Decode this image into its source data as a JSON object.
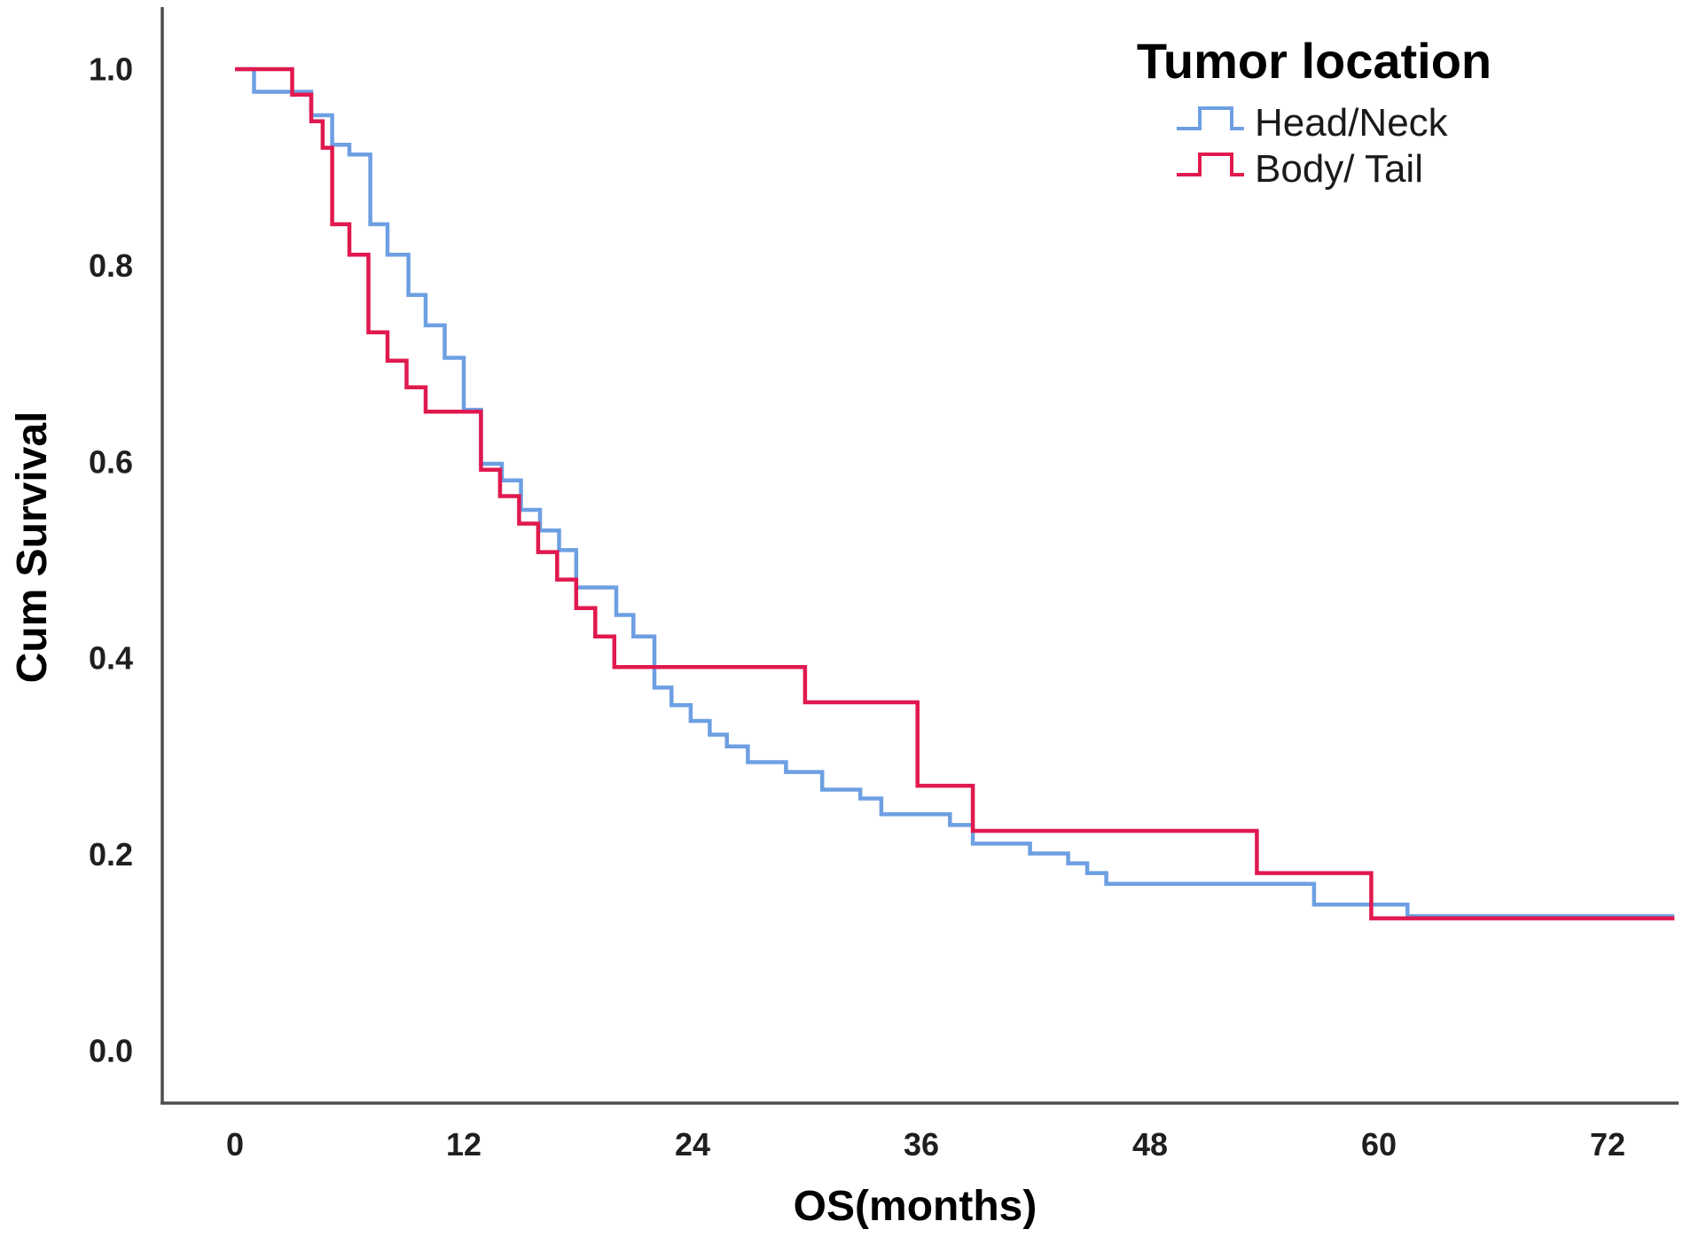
{
  "figure": {
    "background": "#ffffff",
    "axis_color": "#4d4d4d",
    "text_color": "#1f1f1f",
    "y_axis": {
      "title": "Cum Survival",
      "tick_labels": [
        "1.0",
        "0.8",
        "0.6",
        "0.4",
        "0.2",
        "0.0"
      ],
      "tick_values": [
        1.0,
        0.8,
        0.6,
        0.4,
        0.2,
        0.0
      ]
    },
    "x_axis": {
      "title": "OS(months)",
      "tick_labels": [
        "0",
        "12",
        "24",
        "36",
        "48",
        "60",
        "72"
      ],
      "tick_values": [
        0,
        12,
        24,
        36,
        48,
        60,
        72
      ]
    },
    "legend": {
      "title": "Tumor location",
      "entries": [
        {
          "label": "Head/Neck",
          "color": "#6D9FE2"
        },
        {
          "label": "Body/ Tail",
          "color": "#E0194F"
        }
      ]
    }
  },
  "chart_data": {
    "type": "line",
    "subtype": "kaplan-meier-step",
    "title": "",
    "xlabel": "OS(months)",
    "ylabel": "Cum Survival",
    "xlim": [
      0,
      76
    ],
    "ylim": [
      0.0,
      1.05
    ],
    "x_ticks": [
      0,
      12,
      24,
      36,
      48,
      60,
      72
    ],
    "y_ticks": [
      0.0,
      0.2,
      0.4,
      0.6,
      0.8,
      1.0
    ],
    "grid": false,
    "legend_position": "top-right",
    "legend_title": "Tumor location",
    "series": [
      {
        "name": "Head/Neck",
        "color": "#6D9FE2",
        "end_time": 75.5,
        "steps": [
          [
            0,
            1.0
          ],
          [
            1,
            0.977
          ],
          [
            4,
            0.953
          ],
          [
            5.1,
            0.923
          ],
          [
            6,
            0.913
          ],
          [
            7.1,
            0.842
          ],
          [
            8,
            0.811
          ],
          [
            9.1,
            0.77
          ],
          [
            10,
            0.739
          ],
          [
            11,
            0.706
          ],
          [
            12,
            0.653
          ],
          [
            12.9,
            0.598
          ],
          [
            14,
            0.581
          ],
          [
            15,
            0.551
          ],
          [
            16,
            0.53
          ],
          [
            17,
            0.51
          ],
          [
            17.9,
            0.472
          ],
          [
            20,
            0.444
          ],
          [
            20.9,
            0.422
          ],
          [
            22,
            0.37
          ],
          [
            22.9,
            0.352
          ],
          [
            23.9,
            0.336
          ],
          [
            24.9,
            0.322
          ],
          [
            25.8,
            0.31
          ],
          [
            26.9,
            0.294
          ],
          [
            28.9,
            0.284
          ],
          [
            30.8,
            0.266
          ],
          [
            32.8,
            0.257
          ],
          [
            33.9,
            0.241
          ],
          [
            37.5,
            0.23
          ],
          [
            38.7,
            0.211
          ],
          [
            41.7,
            0.201
          ],
          [
            43.7,
            0.191
          ],
          [
            44.7,
            0.181
          ],
          [
            45.7,
            0.17
          ],
          [
            56.6,
            0.149
          ],
          [
            61.5,
            0.137
          ]
        ]
      },
      {
        "name": "Body/ Tail",
        "color": "#E0194F",
        "end_time": 75.5,
        "steps": [
          [
            0,
            1.0
          ],
          [
            3,
            0.974
          ],
          [
            4,
            0.947
          ],
          [
            4.6,
            0.92
          ],
          [
            5.1,
            0.842
          ],
          [
            6,
            0.811
          ],
          [
            7,
            0.732
          ],
          [
            8,
            0.703
          ],
          [
            9,
            0.676
          ],
          [
            10,
            0.651
          ],
          [
            12.9,
            0.592
          ],
          [
            13.9,
            0.565
          ],
          [
            14.9,
            0.537
          ],
          [
            15.9,
            0.508
          ],
          [
            16.9,
            0.48
          ],
          [
            17.9,
            0.451
          ],
          [
            18.9,
            0.422
          ],
          [
            19.9,
            0.391
          ],
          [
            29.9,
            0.355
          ],
          [
            35.8,
            0.27
          ],
          [
            38.7,
            0.224
          ],
          [
            53.6,
            0.181
          ],
          [
            59.6,
            0.135
          ]
        ]
      }
    ]
  }
}
